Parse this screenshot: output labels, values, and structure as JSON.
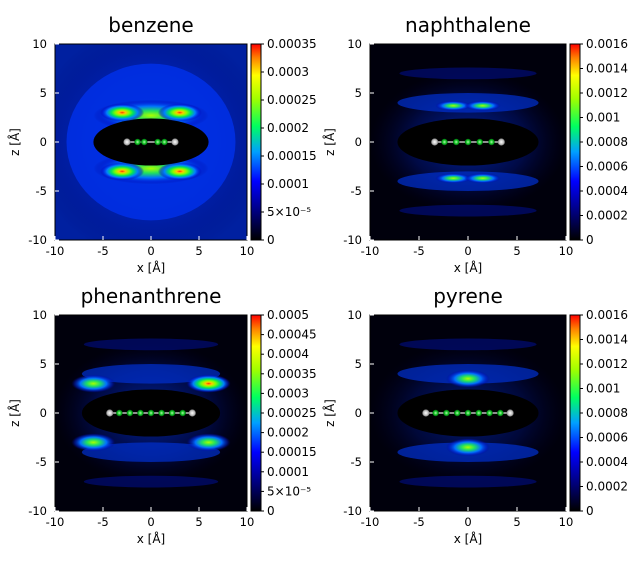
{
  "chart_data": [
    {
      "type": "heatmap",
      "title": "benzene",
      "xlabel": "x [Å]",
      "ylabel": "z [Å]",
      "xlim": [
        -10,
        10
      ],
      "ylim": [
        -10,
        10
      ],
      "xticks": [
        "-10",
        "-5",
        "0",
        "5",
        "10"
      ],
      "yticks": [
        "10",
        "5",
        "0",
        "-5",
        "-10"
      ],
      "colorbar": {
        "min": 0,
        "max": 0.00035,
        "ticks": [
          "0.00035",
          "0.0003",
          "0.00025",
          "0.0002",
          "0.00015",
          "0.0001",
          "5×10⁻⁵",
          "0"
        ]
      },
      "peaks": [
        {
          "x": -3,
          "z": 3,
          "level": 0.9
        },
        {
          "x": 3,
          "z": 3,
          "level": 0.85
        },
        {
          "x": -3,
          "z": -3,
          "level": 0.95
        },
        {
          "x": 3,
          "z": -3,
          "level": 0.85
        }
      ],
      "molecule": {
        "atoms_x": [
          -1.4,
          -0.7,
          0.7,
          1.4
        ],
        "hydrogens_x": [
          -2.5,
          2.5
        ]
      }
    },
    {
      "type": "heatmap",
      "title": "naphthalene",
      "xlabel": "x [Å]",
      "ylabel": "z [Å]",
      "xlim": [
        -10,
        10
      ],
      "ylim": [
        -10,
        10
      ],
      "xticks": [
        "-10",
        "-5",
        "0",
        "5",
        "10"
      ],
      "yticks": [
        "10",
        "5",
        "0",
        "-5",
        "-10"
      ],
      "colorbar": {
        "min": 0,
        "max": 0.0016,
        "ticks": [
          "0.0016",
          "0.0014",
          "0.0012",
          "0.001",
          "0.0008",
          "0.0006",
          "0.0004",
          "0.0002",
          "0"
        ]
      },
      "peaks": [
        {
          "x": -1.5,
          "z": 3.7,
          "level": 0.35
        },
        {
          "x": 1.5,
          "z": 3.7,
          "level": 0.35
        },
        {
          "x": -1.5,
          "z": -3.7,
          "level": 0.3
        },
        {
          "x": 1.5,
          "z": -3.7,
          "level": 0.3
        }
      ],
      "molecule": {
        "atoms_x": [
          -2.4,
          -1.2,
          0,
          1.2,
          2.4
        ],
        "hydrogens_x": [
          -3.4,
          3.4
        ]
      }
    },
    {
      "type": "heatmap",
      "title": "phenanthrene",
      "xlabel": "x [Å]",
      "ylabel": "z [Å]",
      "xlim": [
        -10,
        10
      ],
      "ylim": [
        -10,
        10
      ],
      "xticks": [
        "-10",
        "-5",
        "0",
        "5",
        "10"
      ],
      "yticks": [
        "10",
        "5",
        "0",
        "-5",
        "-10"
      ],
      "colorbar": {
        "min": 0,
        "max": 0.0005,
        "ticks": [
          "0.0005",
          "0.00045",
          "0.0004",
          "0.00035",
          "0.0003",
          "0.00025",
          "0.0002",
          "0.00015",
          "0.0001",
          "5×10⁻⁵",
          "0"
        ]
      },
      "peaks": [
        {
          "x": -6,
          "z": 3,
          "level": 0.65
        },
        {
          "x": 6,
          "z": 3,
          "level": 0.75
        },
        {
          "x": -6,
          "z": -3,
          "level": 0.65
        },
        {
          "x": 6,
          "z": -3,
          "level": 0.6
        }
      ],
      "molecule": {
        "atoms_x": [
          -3.3,
          -2.2,
          -1.1,
          0,
          1.1,
          2.2,
          3.3
        ],
        "hydrogens_x": [
          -4.3,
          4.3
        ]
      }
    },
    {
      "type": "heatmap",
      "title": "pyrene",
      "xlabel": "x [Å]",
      "ylabel": "z [Å]",
      "xlim": [
        -10,
        10
      ],
      "ylim": [
        -10,
        10
      ],
      "xticks": [
        "-10",
        "-5",
        "0",
        "5",
        "10"
      ],
      "yticks": [
        "10",
        "5",
        "0",
        "-5",
        "-10"
      ],
      "colorbar": {
        "min": 0,
        "max": 0.0016,
        "ticks": [
          "0.0016",
          "0.0014",
          "0.0012",
          "0.001",
          "0.0008",
          "0.0006",
          "0.0004",
          "0.0002",
          "0"
        ]
      },
      "peaks": [
        {
          "x": 0,
          "z": 3.5,
          "level": 0.62
        },
        {
          "x": 0,
          "z": -3.5,
          "level": 0.35
        }
      ],
      "molecule": {
        "atoms_x": [
          -3.3,
          -2.2,
          -1.1,
          0,
          1.1,
          2.2,
          3.3
        ],
        "hydrogens_x": [
          -4.3,
          4.3
        ]
      }
    }
  ]
}
